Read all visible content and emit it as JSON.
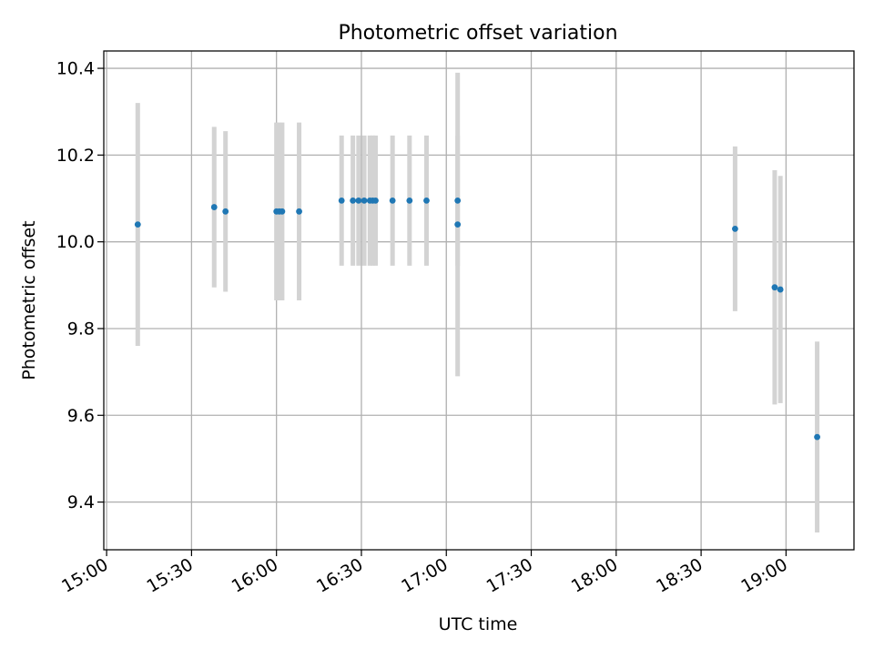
{
  "chart_data": {
    "type": "scatter",
    "title": "Photometric offset variation",
    "xlabel": "UTC time",
    "ylabel": "Photometric offset",
    "x_ticks": [
      "15:00",
      "15:30",
      "16:00",
      "16:30",
      "17:00",
      "17:30",
      "18:00",
      "18:30",
      "19:00"
    ],
    "y_ticks": [
      "9.4",
      "9.6",
      "9.8",
      "10.0",
      "10.2",
      "10.4"
    ],
    "xlim": [
      "14:59",
      "19:24"
    ],
    "ylim": [
      9.29,
      10.44
    ],
    "grid": true,
    "colors": {
      "points": "#1f77b4",
      "errorbars": "#d3d3d3",
      "grid": "#b0b0b0"
    },
    "points": [
      {
        "time": "15:11",
        "value": 10.04,
        "error": 0.28
      },
      {
        "time": "15:38",
        "value": 10.08,
        "error": 0.185
      },
      {
        "time": "15:42",
        "value": 10.07,
        "error": 0.185
      },
      {
        "time": "16:00",
        "value": 10.07,
        "error": 0.205
      },
      {
        "time": "16:01",
        "value": 10.07,
        "error": 0.205
      },
      {
        "time": "16:02",
        "value": 10.07,
        "error": 0.205
      },
      {
        "time": "16:08",
        "value": 10.07,
        "error": 0.205
      },
      {
        "time": "16:23",
        "value": 10.095,
        "error": 0.15
      },
      {
        "time": "16:27",
        "value": 10.095,
        "error": 0.15
      },
      {
        "time": "16:29",
        "value": 10.095,
        "error": 0.15
      },
      {
        "time": "16:31",
        "value": 10.095,
        "error": 0.15
      },
      {
        "time": "16:33",
        "value": 10.095,
        "error": 0.15
      },
      {
        "time": "16:34",
        "value": 10.095,
        "error": 0.15
      },
      {
        "time": "16:35",
        "value": 10.095,
        "error": 0.15
      },
      {
        "time": "16:41",
        "value": 10.095,
        "error": 0.15
      },
      {
        "time": "16:47",
        "value": 10.095,
        "error": 0.15
      },
      {
        "time": "16:53",
        "value": 10.095,
        "error": 0.15
      },
      {
        "time": "17:04",
        "value": 10.095,
        "error": 0.15
      },
      {
        "time": "17:04",
        "value": 10.04,
        "error": 0.35
      },
      {
        "time": "18:42",
        "value": 10.03,
        "error": 0.19
      },
      {
        "time": "18:56",
        "value": 9.895,
        "error": 0.27
      },
      {
        "time": "18:58",
        "value": 9.89,
        "error": 0.262
      },
      {
        "time": "19:11",
        "value": 9.55,
        "error": 0.22
      }
    ]
  }
}
